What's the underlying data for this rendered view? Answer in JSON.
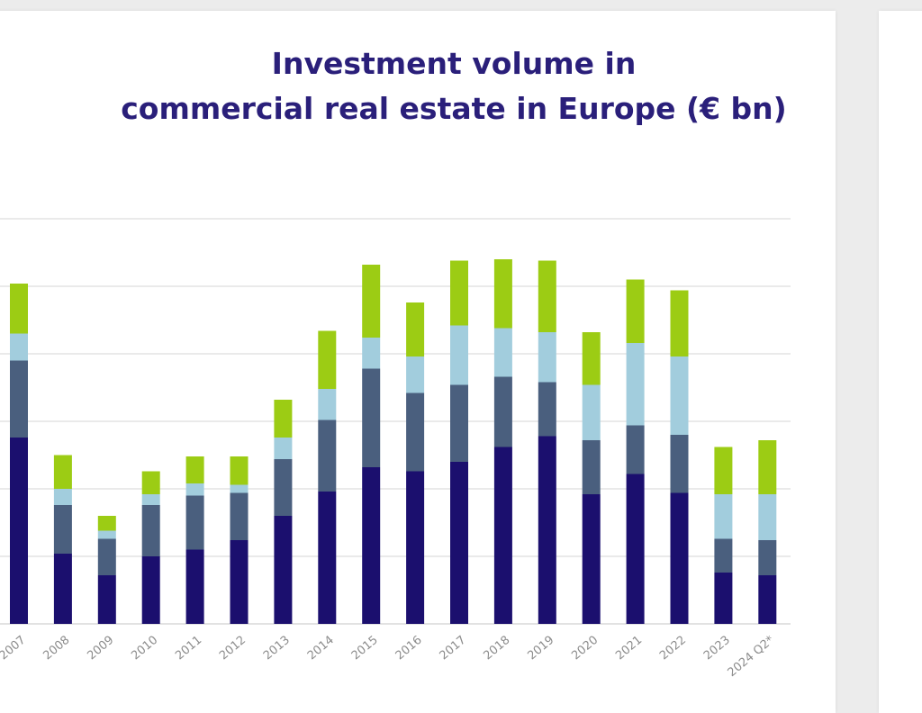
{
  "chart_data": {
    "type": "bar",
    "stacked": true,
    "title_lines": [
      "Investment volume in",
      "commercial real estate in Europe (€ bn)"
    ],
    "xlabel": "",
    "ylabel": "",
    "ylim": [
      0,
      300
    ],
    "grid": true,
    "legend": "none",
    "categories": [
      "2007",
      "2008",
      "2009",
      "2010",
      "2011",
      "2012",
      "2013",
      "2014",
      "2015",
      "2016",
      "2017",
      "2018",
      "2019",
      "2020",
      "2021",
      "2022",
      "2023",
      "2024 Q2*"
    ],
    "series": [
      {
        "color": "#1b0f6e",
        "values": [
          138,
          52,
          36,
          50,
          55,
          62,
          80,
          98,
          116,
          113,
          120,
          131,
          139,
          96,
          111,
          97,
          38,
          36
        ]
      },
      {
        "color": "#4a5f7e",
        "values": [
          57,
          36,
          27,
          38,
          40,
          35,
          42,
          53,
          73,
          58,
          57,
          52,
          40,
          40,
          36,
          43,
          25,
          26
        ]
      },
      {
        "color": "#a2cddd",
        "values": [
          20,
          12,
          6,
          8,
          9,
          6,
          16,
          23,
          23,
          27,
          44,
          36,
          37,
          41,
          61,
          58,
          33,
          34
        ]
      },
      {
        "color": "#9ccc14",
        "values": [
          37,
          25,
          11,
          17,
          20,
          21,
          28,
          43,
          54,
          40,
          48,
          51,
          53,
          39,
          47,
          49,
          35,
          40
        ]
      }
    ]
  }
}
